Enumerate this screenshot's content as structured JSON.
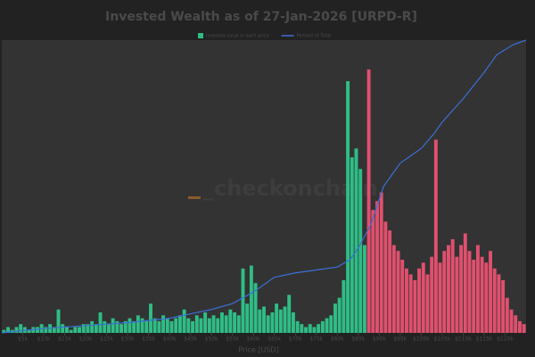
{
  "chart_data": {
    "type": "histogram",
    "title": "Invested Wealth as of 27-Jan-2026 [URPD-R]",
    "x_label": "Price [USD]",
    "watermark": "_checkonchain",
    "bins": [
      0,
      1000,
      2000,
      3000,
      4000,
      5000,
      6000,
      7000,
      8000,
      9000,
      10000,
      11000,
      12000,
      13000,
      14000,
      15000,
      16000,
      17000,
      18000,
      19000,
      20000,
      21000,
      22000,
      23000,
      24000,
      25000,
      26000,
      27000,
      28000,
      29000,
      30000,
      31000,
      32000,
      33000,
      34000,
      35000,
      36000,
      37000,
      38000,
      39000,
      40000,
      41000,
      42000,
      43000,
      44000,
      45000,
      46000,
      47000,
      48000,
      49000,
      50000,
      51000,
      52000,
      53000,
      54000,
      55000,
      56000,
      57000,
      58000,
      59000,
      60000,
      61000,
      62000,
      63000,
      64000,
      65000,
      66000,
      67000,
      68000,
      69000,
      70000,
      71000,
      72000,
      73000,
      74000,
      75000,
      76000,
      77000,
      78000,
      79000,
      80000,
      81000,
      82000,
      83000,
      84000,
      85000,
      86000,
      87000,
      88000,
      89000,
      90000,
      91000,
      92000,
      93000,
      94000,
      95000,
      96000,
      97000,
      98000,
      99000,
      100000,
      101000,
      102000,
      103000,
      104000,
      105000,
      106000,
      107000,
      108000,
      109000,
      110000,
      111000,
      112000,
      113000,
      114000,
      115000,
      116000,
      117000,
      118000,
      119000,
      120000,
      121000,
      122000,
      123000,
      124000,
      125000
    ],
    "series": [
      {
        "name": "Invested value in each price",
        "color": "#2fbd86",
        "values": [
          1,
          2,
          1,
          2,
          3,
          2,
          1,
          2,
          2,
          3,
          2,
          3,
          2,
          8,
          3,
          2,
          1,
          2,
          2,
          3,
          3,
          4,
          3,
          7,
          4,
          3,
          5,
          4,
          3,
          4,
          5,
          4,
          6,
          5,
          4,
          10,
          5,
          4,
          6,
          5,
          4,
          5,
          6,
          8,
          5,
          4,
          6,
          5,
          7,
          5,
          6,
          5,
          7,
          6,
          8,
          7,
          6,
          22,
          10,
          23,
          17,
          8,
          9,
          6,
          7,
          10,
          8,
          9,
          13,
          7,
          4,
          3,
          2,
          3,
          2,
          3,
          4,
          5,
          6,
          10,
          12,
          18,
          86,
          60,
          63,
          56,
          30,
          null,
          null,
          null,
          null,
          null,
          null,
          null,
          null,
          null,
          null,
          null,
          null,
          null,
          null,
          null,
          null,
          null,
          null,
          null,
          null,
          null,
          null,
          null,
          null,
          null,
          null,
          null,
          null,
          null,
          null,
          null,
          null,
          null,
          null,
          null,
          null,
          null,
          null
        ]
      },
      {
        "color": "#e0506e",
        "values": [
          null,
          null,
          null,
          null,
          null,
          null,
          null,
          null,
          null,
          null,
          null,
          null,
          null,
          null,
          null,
          null,
          null,
          null,
          null,
          null,
          null,
          null,
          null,
          null,
          null,
          null,
          null,
          null,
          null,
          null,
          null,
          null,
          null,
          null,
          null,
          null,
          null,
          null,
          null,
          null,
          null,
          null,
          null,
          null,
          null,
          null,
          null,
          null,
          null,
          null,
          null,
          null,
          null,
          null,
          null,
          null,
          null,
          null,
          null,
          null,
          null,
          null,
          null,
          null,
          null,
          null,
          null,
          null,
          null,
          null,
          null,
          null,
          null,
          null,
          null,
          null,
          null,
          null,
          null,
          null,
          null,
          null,
          null,
          null,
          null,
          null,
          null,
          90,
          42,
          45,
          48,
          38,
          35,
          30,
          28,
          25,
          22,
          20,
          18,
          22,
          24,
          20,
          26,
          66,
          24,
          28,
          30,
          32,
          26,
          30,
          34,
          28,
          25,
          30,
          26,
          24,
          28,
          22,
          20,
          18,
          12,
          8,
          6,
          4,
          3
        ]
      },
      {
        "name": "Percent of Total",
        "type": "line",
        "axis": "y2",
        "color": "#3b6fd6",
        "x": [
          0,
          5000,
          10000,
          20000,
          30000,
          40000,
          45000,
          50000,
          55000,
          60000,
          65000,
          70000,
          75000,
          80000,
          83000,
          85000,
          88000,
          91000,
          95000,
          100000,
          103000,
          105000,
          110000,
          115000,
          118000,
          122000,
          125000
        ],
        "values": [
          0,
          0.8,
          1.5,
          2.5,
          3.5,
          5,
          6.5,
          8,
          10,
          14,
          19,
          20.5,
          21.5,
          22.5,
          25,
          29,
          37,
          50,
          58,
          63,
          68,
          72,
          80,
          89,
          95,
          98.5,
          100
        ]
      }
    ],
    "xlim": [
      0,
      125000
    ],
    "xticks": [
      {
        "value": 5000,
        "label": "$5k"
      },
      {
        "value": 10000,
        "label": "$10k"
      },
      {
        "value": 15000,
        "label": "$15k"
      },
      {
        "value": 20000,
        "label": "$20k"
      },
      {
        "value": 25000,
        "label": "$25k"
      },
      {
        "value": 30000,
        "label": "$30k"
      },
      {
        "value": 35000,
        "label": "$35k"
      },
      {
        "value": 40000,
        "label": "$40k"
      },
      {
        "value": 45000,
        "label": "$45k"
      },
      {
        "value": 50000,
        "label": "$50k"
      },
      {
        "value": 55000,
        "label": "$55k"
      },
      {
        "value": 60000,
        "label": "$60k"
      },
      {
        "value": 65000,
        "label": "$65k"
      },
      {
        "value": 70000,
        "label": "$70k"
      },
      {
        "value": 75000,
        "label": "$75k"
      },
      {
        "value": 80000,
        "label": "$80k"
      },
      {
        "value": 85000,
        "label": "$85k"
      },
      {
        "value": 90000,
        "label": "$90k"
      },
      {
        "value": 95000,
        "label": "$95k"
      },
      {
        "value": 100000,
        "label": "$100k"
      },
      {
        "value": 105000,
        "label": "$105k"
      },
      {
        "value": 110000,
        "label": "$110k"
      },
      {
        "value": 115000,
        "label": "$115k"
      },
      {
        "value": 120000,
        "label": "$120k"
      }
    ],
    "ylim": [
      0,
      100
    ],
    "y2lim": [
      0,
      100
    ]
  }
}
